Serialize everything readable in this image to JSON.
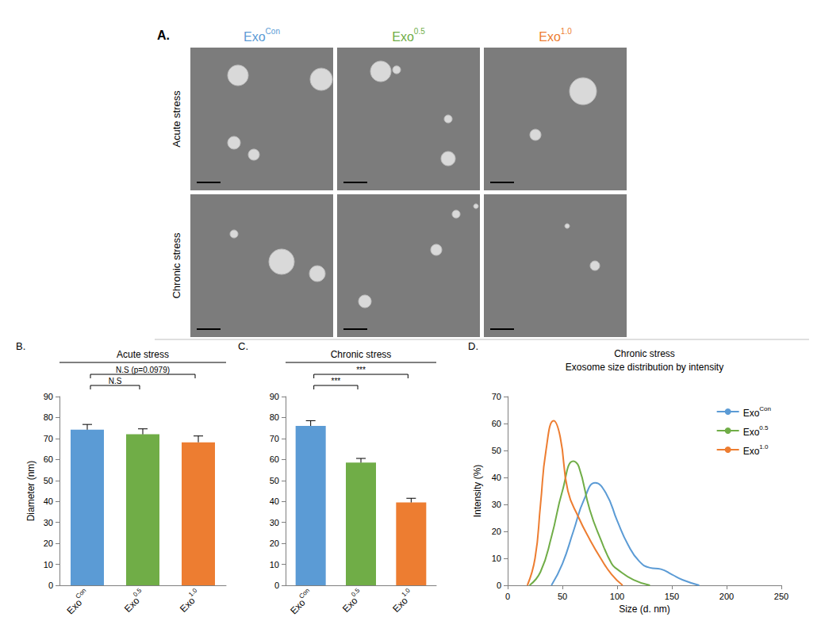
{
  "panel_a": {
    "letter": "A.",
    "columns": [
      {
        "label": "ExoCon",
        "color": "#5b9bd5"
      },
      {
        "label": "Exo0.5",
        "color": "#70ad47"
      },
      {
        "label": "Exo1.0",
        "color": "#ed7d31"
      }
    ],
    "rows": [
      "Acute stress",
      "Chronic stress"
    ]
  },
  "chart_data": [
    {
      "type": "bar",
      "letter": "B.",
      "title": "Acute stress",
      "ylabel": "Diameter (nm)",
      "categories": [
        "ExoCon",
        "Exo0.5",
        "Exo1.0"
      ],
      "values": [
        74.2,
        72,
        68.2
      ],
      "errors": [
        2.5,
        2.6,
        3
      ],
      "colors": [
        "#5b9bd5",
        "#70ad47",
        "#ed7d31"
      ],
      "ylim": [
        0,
        90
      ],
      "yticks": [
        0,
        10,
        20,
        30,
        40,
        50,
        60,
        70,
        80,
        90
      ],
      "grid": false,
      "annotations": [
        {
          "text": "N.S",
          "from": "ExoCon",
          "to": "Exo0.5"
        },
        {
          "text": "N.S (p=0.0979)",
          "from": "ExoCon",
          "to": "Exo1.0"
        }
      ]
    },
    {
      "type": "bar",
      "letter": "C.",
      "title": "Chronic stress",
      "categories": [
        "ExoCon",
        "Exo0.5",
        "Exo1.0"
      ],
      "values": [
        76,
        58.5,
        39.5
      ],
      "errors": [
        2.5,
        2,
        2
      ],
      "colors": [
        "#5b9bd5",
        "#70ad47",
        "#ed7d31"
      ],
      "ylim": [
        0,
        90
      ],
      "yticks": [
        0,
        10,
        20,
        30,
        40,
        50,
        60,
        70,
        80,
        90
      ],
      "grid": false,
      "annotations": [
        {
          "text": "***",
          "from": "ExoCon",
          "to": "Exo0.5"
        },
        {
          "text": "***",
          "from": "ExoCon",
          "to": "Exo1.0"
        }
      ]
    },
    {
      "type": "line",
      "letter": "D.",
      "title": "Chronic stress",
      "subtitle": "Exosome size distribution by intensity",
      "xlabel": "Size (d. nm)",
      "ylabel": "Intensity (%)",
      "xlim": [
        0,
        250
      ],
      "xticks": [
        0,
        50,
        100,
        150,
        200,
        250
      ],
      "ylim": [
        0,
        70
      ],
      "yticks": [
        0,
        10,
        20,
        30,
        40,
        50,
        60,
        70
      ],
      "grid": false,
      "legend": "upper right",
      "series": [
        {
          "name": "ExoCon",
          "color": "#5b9bd5",
          "x": [
            40,
            50,
            60,
            70,
            80,
            90,
            100,
            110,
            120,
            130,
            140,
            150,
            160,
            175
          ],
          "values": [
            0,
            8,
            20,
            32,
            38,
            34,
            24,
            15,
            9,
            6.5,
            6,
            4,
            2,
            0
          ]
        },
        {
          "name": "Exo0.5",
          "color": "#70ad47",
          "x": [
            20,
            30,
            40,
            50,
            60,
            65,
            75,
            85,
            95,
            100,
            115,
            130
          ],
          "values": [
            0,
            5,
            18,
            35,
            46,
            44,
            28,
            17,
            8,
            6,
            2,
            0
          ]
        },
        {
          "name": "Exo1.0",
          "color": "#ed7d31",
          "x": [
            18,
            25,
            30,
            35,
            42,
            48,
            55,
            65,
            75,
            85,
            95,
            105
          ],
          "values": [
            0,
            10,
            30,
            50,
            61,
            55,
            35,
            25,
            17,
            10,
            4,
            0
          ]
        }
      ]
    }
  ]
}
